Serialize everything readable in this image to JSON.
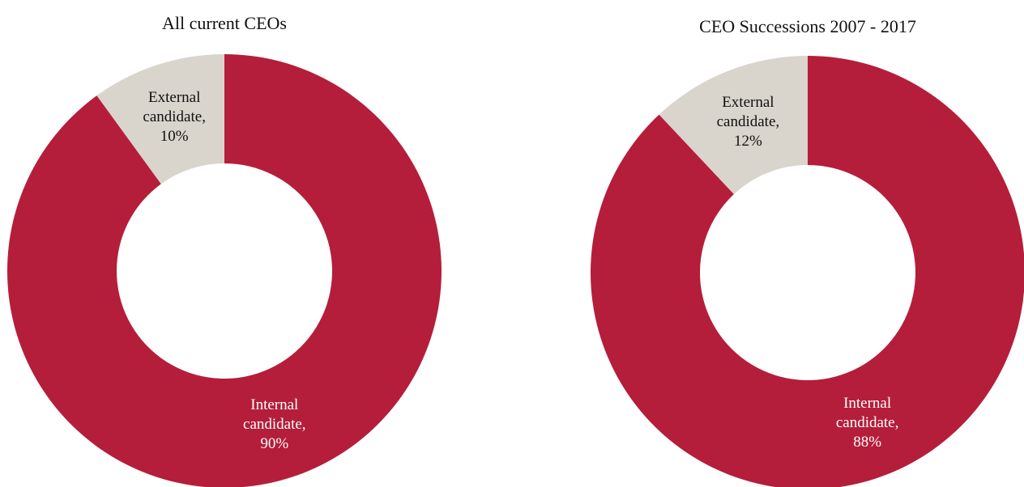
{
  "chart_data": [
    {
      "type": "donut",
      "title": "All current CEOs",
      "categories": [
        "Internal candidate,",
        "External candidate,"
      ],
      "values": [
        90,
        10
      ],
      "value_labels": [
        "90%",
        "10%"
      ],
      "colors": [
        "#b41e3a",
        "#d9d4cc"
      ],
      "label_colors": [
        "#ffffff",
        "#111111"
      ]
    },
    {
      "type": "donut",
      "title": "CEO Successions 2007 - 2017",
      "categories": [
        "Internal candidate,",
        "External candidate,"
      ],
      "values": [
        88,
        12
      ],
      "value_labels": [
        "88%",
        "12%"
      ],
      "colors": [
        "#b41e3a",
        "#d9d4cc"
      ],
      "label_colors": [
        "#ffffff",
        "#111111"
      ]
    }
  ]
}
